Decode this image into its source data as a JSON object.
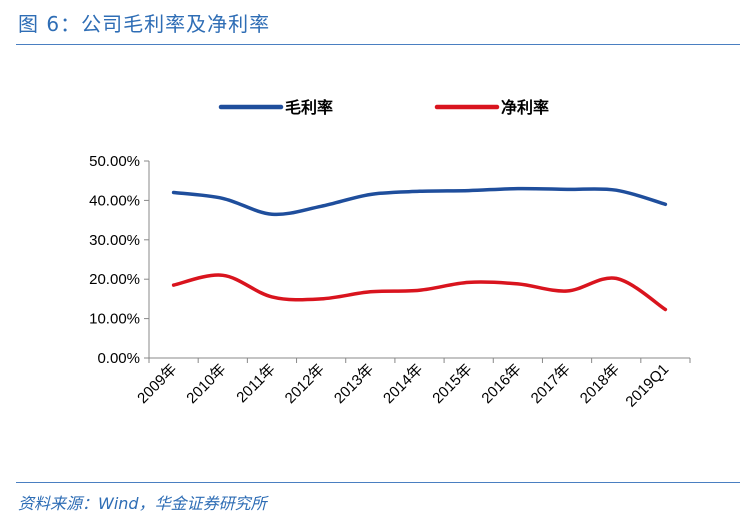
{
  "figure": {
    "title": "图 6：公司毛利率及净利率",
    "source": "资料来源：Wind，华金证券研究所"
  },
  "chart_data": {
    "type": "line",
    "title": "",
    "xlabel": "",
    "ylabel": "",
    "categories": [
      "2009年",
      "2010年",
      "2011年",
      "2012年",
      "2013年",
      "2014年",
      "2015年",
      "2016年",
      "2017年",
      "2018年",
      "2019Q1"
    ],
    "ylim": [
      0,
      50
    ],
    "yticks": [
      "0.00%",
      "10.00%",
      "20.00%",
      "30.00%",
      "40.00%",
      "50.00%"
    ],
    "ytick_values": [
      0,
      10,
      20,
      30,
      40,
      50
    ],
    "grid": false,
    "legend_position": "top",
    "smooth": true,
    "series": [
      {
        "name": "毛利率",
        "color": "#1f4e9c",
        "values": [
          42.0,
          40.5,
          36.5,
          38.5,
          41.5,
          42.3,
          42.5,
          43.0,
          42.8,
          42.6,
          39.0
        ]
      },
      {
        "name": "净利率",
        "color": "#d9141e",
        "values": [
          18.5,
          21.0,
          15.5,
          15.0,
          16.8,
          17.2,
          19.2,
          18.8,
          17.0,
          20.2,
          12.3
        ]
      }
    ]
  }
}
